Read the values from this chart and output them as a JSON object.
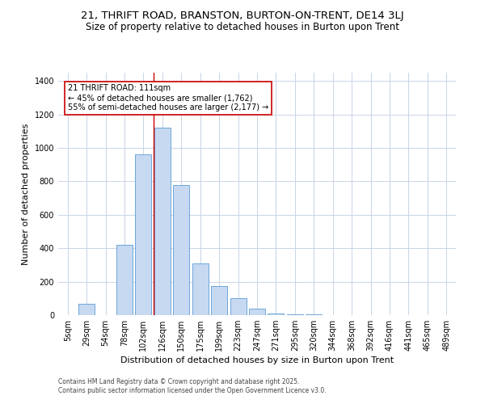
{
  "title": "21, THRIFT ROAD, BRANSTON, BURTON-ON-TRENT, DE14 3LJ",
  "subtitle": "Size of property relative to detached houses in Burton upon Trent",
  "xlabel": "Distribution of detached houses by size in Burton upon Trent",
  "ylabel": "Number of detached properties",
  "categories": [
    "5sqm",
    "29sqm",
    "54sqm",
    "78sqm",
    "102sqm",
    "126sqm",
    "150sqm",
    "175sqm",
    "199sqm",
    "223sqm",
    "247sqm",
    "271sqm",
    "295sqm",
    "320sqm",
    "344sqm",
    "368sqm",
    "392sqm",
    "416sqm",
    "441sqm",
    "465sqm",
    "489sqm"
  ],
  "values": [
    0,
    70,
    0,
    420,
    960,
    1120,
    780,
    310,
    175,
    100,
    40,
    10,
    5,
    3,
    2,
    1,
    0,
    0,
    0,
    0,
    0
  ],
  "bar_color": "#c6d9f1",
  "bar_edge_color": "#5b9bd5",
  "background_color": "#ffffff",
  "grid_color": "#c8d4e8",
  "red_line_x": 4.55,
  "annotation_text": "21 THRIFT ROAD: 111sqm\n← 45% of detached houses are smaller (1,762)\n55% of semi-detached houses are larger (2,177) →",
  "annotation_box_color": "#ffffff",
  "annotation_box_edge_color": "#cc0000",
  "ylim": [
    0,
    1450
  ],
  "yticks": [
    0,
    200,
    400,
    600,
    800,
    1000,
    1200,
    1400
  ],
  "footer_line1": "Contains HM Land Registry data © Crown copyright and database right 2025.",
  "footer_line2": "Contains public sector information licensed under the Open Government Licence v3.0.",
  "title_fontsize": 9.5,
  "subtitle_fontsize": 8.5,
  "tick_fontsize": 7,
  "ylabel_fontsize": 8,
  "xlabel_fontsize": 8,
  "annotation_fontsize": 7,
  "footer_fontsize": 5.5
}
